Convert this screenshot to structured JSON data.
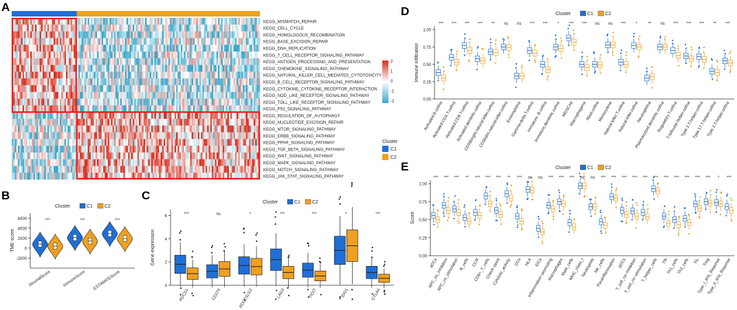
{
  "colors": {
    "c1": "#1f6fd6",
    "c2": "#f0a020",
    "high": "#d7301f",
    "mid": "#ffffff",
    "low": "#3aa6c8",
    "highlight": "#e8201c"
  },
  "panel_labels": {
    "a": "A",
    "b": "B",
    "c": "C",
    "d": "D",
    "e": "E"
  },
  "heatmap": {
    "pathways": [
      "KEGG_MISMATCH_REPAIR",
      "KEGG_CELL_CYCLE",
      "KEGG_HOMOLOGOUS_RECOMBINATION",
      "KEGG_BASE_EXCISION_REPAIR",
      "KEGG_DNA_REPLICATION",
      "KEGG_T_CELL_RECEPTOR_SIGNALING_PATHWAY",
      "KEGG_ANTIGEN_PROCESSING_AND_PRESENTATION",
      "KEGG_CHEMOKINE_SIGNALING_PATHWAY",
      "KEGG_NATURAL_KILLER_CELL_MEDIATED_CYTOTOXICITY",
      "KEGG_B_CELL_RECEPTOR_SIGNALING_PATHWAY",
      "KEGG_CYTOKINE_CYTOKINE_RECEPTOR_INTERACTION",
      "KEGG_NOD_LIKE_RECEPTOR_SIGNALING_PATHWAY",
      "KEGG_TOLL_LIKE_RECEPTOR_SIGNALING_PATHWAY",
      "KEGG_P53_SIGNALING_PATHWAY",
      "KEGG_REGULATION_OF_AUTOPHAGY",
      "KEGG_NUCLEOTIDE_EXCISION_REPAIR",
      "KEGG_MTOR_SIGNALING_PATHWAY",
      "KEGG_ERBB_SIGNALING_PATHWAY",
      "KEGG_PPAR_SIGNALING_PATHWAY",
      "KEGG_TGF_BETA_SIGNALING_PATHWAY",
      "KEGG_WNT_SIGNALING_PATHWAY",
      "KEGG_MAPK_SIGNALING_PATHWAY",
      "KEGG_NOTCH_SIGNALING_PATHWAY",
      "KEGG_JAK_STAT_SIGNALING_PATHWAY"
    ],
    "c1_fraction": 0.26,
    "c1_rows": 14,
    "scale_ticks": [
      "2",
      "1",
      "0",
      "-1",
      "-2"
    ],
    "legend_title": "Cluster",
    "legend_items": [
      "C1",
      "C2"
    ]
  },
  "chart_data": [
    {
      "panel": "B",
      "type": "violin",
      "legend_title": "Cluster",
      "legend_items": [
        "C1",
        "C2"
      ],
      "ylabel": "TME score",
      "ylim": [
        -4000,
        7000
      ],
      "yticks": [
        "6000",
        "4000",
        "2000",
        "0",
        "-2000"
      ],
      "ytick_values": [
        6000,
        4000,
        2000,
        0,
        -2000
      ],
      "categories": [
        "StromalScore",
        "ImmuneScore",
        "ESTIMATEScore"
      ],
      "significance": [
        "***",
        "***",
        "***"
      ],
      "series": [
        {
          "name": "C1",
          "medians": [
            800,
            2100,
            2900
          ]
        },
        {
          "name": "C2",
          "medians": [
            400,
            1400,
            1900
          ]
        }
      ]
    },
    {
      "panel": "C",
      "type": "box",
      "legend_title": "Cluster",
      "legend_items": [
        "C1",
        "C2"
      ],
      "ylabel": "Gene expression",
      "ylim": [
        0,
        6.5
      ],
      "yticks": [
        "6",
        "4",
        "2",
        "0"
      ],
      "ytick_values": [
        6,
        4,
        2,
        0
      ],
      "categories": [
        "PDCD1",
        "CD274",
        "PDCD1LG2",
        "LAG3",
        "TIGIT",
        "IDO1",
        "CTLA4"
      ],
      "significance": [
        "***",
        "ns",
        "*",
        "***",
        "***",
        "*",
        "***"
      ],
      "series": [
        {
          "name": "C1",
          "medians": [
            1.8,
            1.2,
            1.7,
            2.2,
            1.3,
            3.0,
            1.1
          ]
        },
        {
          "name": "C2",
          "medians": [
            1.0,
            1.4,
            1.6,
            1.1,
            0.8,
            3.4,
            0.6
          ]
        }
      ]
    },
    {
      "panel": "D",
      "type": "box",
      "legend_title": "Cluster",
      "legend_items": [
        "C1",
        "C2"
      ],
      "ylabel": "Immune infiltration",
      "ylim": [
        0,
        1.05
      ],
      "yticks": [
        "1.00",
        "0.75",
        "0.50",
        "0.25",
        "0.00"
      ],
      "ytick_values": [
        1.0,
        0.75,
        0.5,
        0.25,
        0.0
      ],
      "categories": [
        "Activated.B.cellna",
        "Activated.CD4.T.cellna",
        "Activated.CD8.T.cellna",
        "Activated.dendritic.cellna",
        "CD56bright.natural.killer.cellna",
        "CD56dim.natural.killer.cellna",
        "Eosinophilna",
        "Gamma.delta.T.cellna",
        "Immature..B.cellna",
        "Immature.dendritic.cellna",
        "MDSCna",
        "Macrophagena",
        "Mast.cellna",
        "Monocytena",
        "Natural.killer.T.cellna",
        "Natural.killer.cellna",
        "Neutrophilna",
        "Plasmacytoid.dendritic.cellna",
        "Regulatory.T.cellna",
        "T.follicular.helper.cellna",
        "Type.1.T.helper.cellna",
        "Type.17.T.helper.cellna",
        "Type.2.T.helper.cellna"
      ],
      "significance": [
        "***",
        "***",
        "***",
        "***",
        "**",
        "ns",
        "ns",
        "***",
        "***",
        "*",
        "***",
        "***",
        "ns",
        "ns",
        "***",
        "*",
        "**",
        "ns",
        "***",
        "***",
        "***",
        "**",
        "***"
      ],
      "series": [
        {
          "name": "C1",
          "medians": [
            0.38,
            0.6,
            0.77,
            0.58,
            0.68,
            0.75,
            0.33,
            0.7,
            0.5,
            0.75,
            0.88,
            0.5,
            0.5,
            0.78,
            0.53,
            0.77,
            0.3,
            0.75,
            0.7,
            0.62,
            0.61,
            0.4,
            0.55
          ]
        },
        {
          "name": "C2",
          "medians": [
            0.3,
            0.53,
            0.7,
            0.55,
            0.67,
            0.74,
            0.33,
            0.66,
            0.42,
            0.73,
            0.82,
            0.45,
            0.49,
            0.78,
            0.5,
            0.75,
            0.32,
            0.75,
            0.63,
            0.58,
            0.57,
            0.38,
            0.52
          ]
        }
      ]
    },
    {
      "panel": "E",
      "type": "box",
      "legend_title": "Cluster",
      "legend_items": [
        "C1",
        "C2"
      ],
      "ylabel": "Score",
      "ylim": [
        0,
        1.05
      ],
      "yticks": [
        "1.00",
        "0.75",
        "0.50",
        "0.25",
        "0.00"
      ],
      "ytick_values": [
        1.0,
        0.75,
        0.5,
        0.25,
        0.0
      ],
      "categories": [
        "aDCs",
        "APC_co_inhibition",
        "APC_co_stimulation",
        "B_cells",
        "CCR",
        "CD8+_T_cells",
        "Check−point",
        "Cytolytic_activity",
        "DCs",
        "HLA",
        "iDCs",
        "Inflammation−promoting",
        "Macrophages",
        "Mast_cells",
        "MHC_class_I",
        "Neutrophils",
        "NK_cells",
        "Parainflammation",
        "pDCs",
        "T_cell_co−inhibition",
        "T_cell_co−stimulation",
        "T_helper_cells",
        "Tfh",
        "Th1_cells",
        "Th2_cells",
        "TIL",
        "Treg",
        "Type_I_IFN_Reponse",
        "Type_II_IFN_Reponse"
      ],
      "significance": [
        "***",
        "***",
        "***",
        "**",
        "***",
        "***",
        "***",
        "**",
        "***",
        "ns",
        "ns",
        "***",
        "***",
        "***",
        "ns",
        "ns",
        "***",
        "***",
        "***",
        "***",
        "***",
        "***",
        "***",
        "***",
        "***",
        "***",
        "***",
        "*",
        "***"
      ],
      "series": [
        {
          "name": "C1",
          "medians": [
            0.56,
            0.7,
            0.65,
            0.53,
            0.6,
            0.83,
            0.63,
            0.86,
            0.55,
            0.92,
            0.38,
            0.7,
            0.75,
            0.46,
            0.97,
            0.68,
            0.47,
            0.82,
            0.63,
            0.62,
            0.6,
            0.93,
            0.55,
            0.5,
            0.52,
            0.72,
            0.75,
            0.74,
            0.68
          ]
        },
        {
          "name": "C2",
          "medians": [
            0.5,
            0.63,
            0.6,
            0.48,
            0.56,
            0.72,
            0.57,
            0.8,
            0.48,
            0.91,
            0.33,
            0.65,
            0.72,
            0.4,
            0.97,
            0.68,
            0.42,
            0.8,
            0.57,
            0.55,
            0.54,
            0.9,
            0.45,
            0.43,
            0.46,
            0.66,
            0.73,
            0.72,
            0.63
          ]
        }
      ]
    }
  ]
}
